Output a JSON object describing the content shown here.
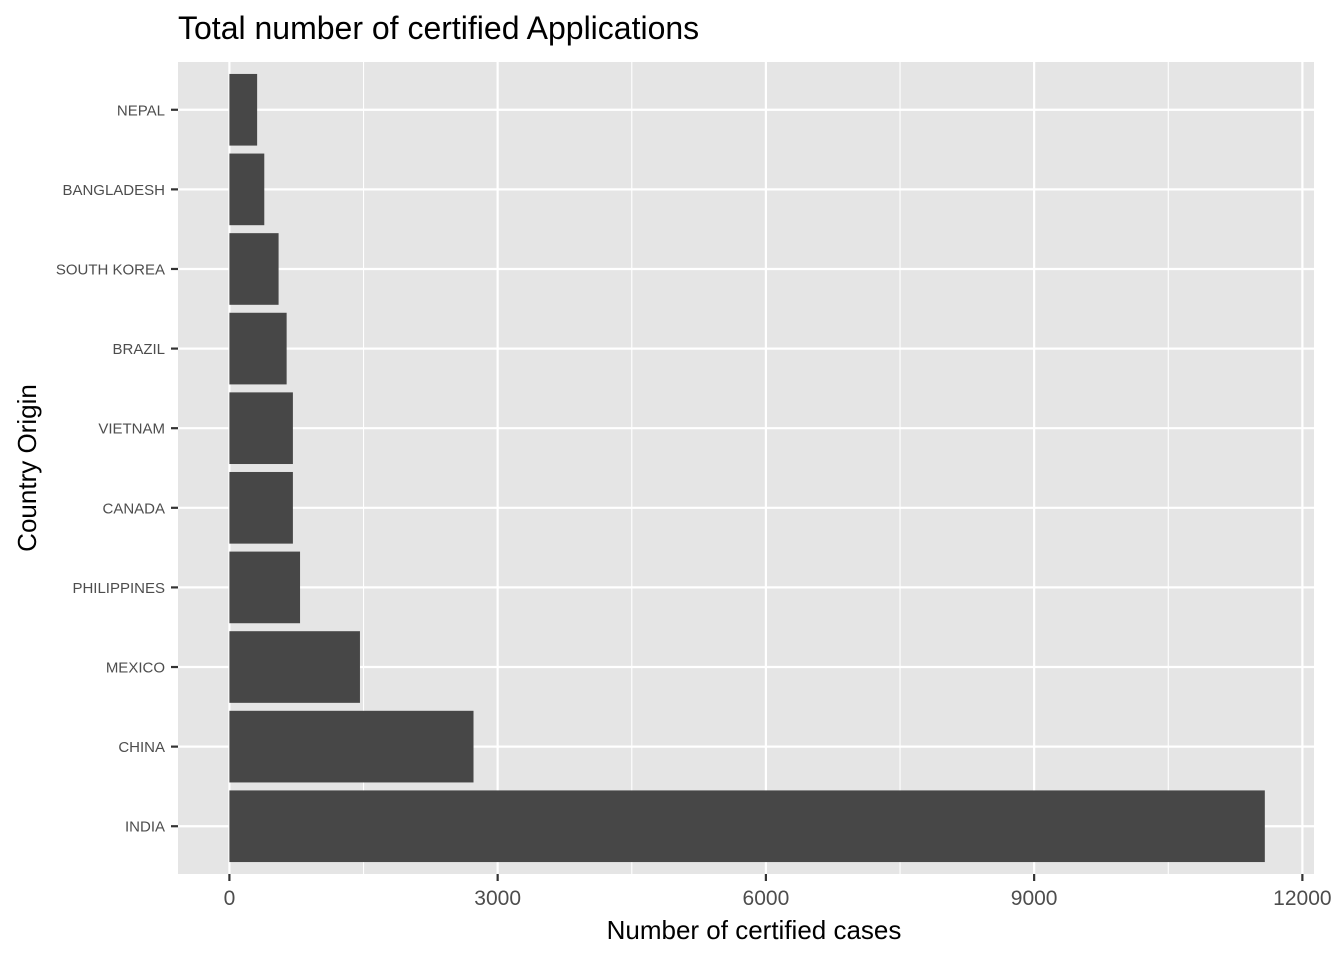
{
  "chart_data": {
    "type": "bar",
    "orientation": "horizontal",
    "title": "Total number of certified Applications",
    "xlabel": "Number of certified cases",
    "ylabel": "Country Origin",
    "categories": [
      "INDIA",
      "CHINA",
      "MEXICO",
      "PHILIPPINES",
      "CANADA",
      "VIETNAM",
      "BRAZIL",
      "SOUTH KOREA",
      "BANGLADESH",
      "NEPAL"
    ],
    "values": [
      11580,
      2730,
      1460,
      790,
      710,
      710,
      640,
      550,
      390,
      310
    ],
    "xlim": [
      -575,
      12130
    ],
    "xticks": [
      0,
      3000,
      6000,
      9000,
      12000
    ],
    "xtick_labels": [
      "0",
      "3000",
      "6000",
      "9000",
      "12000"
    ],
    "grid": true,
    "bar_color": "#474747",
    "panel_color": "#e5e5e5",
    "grid_color": "#ffffff"
  }
}
